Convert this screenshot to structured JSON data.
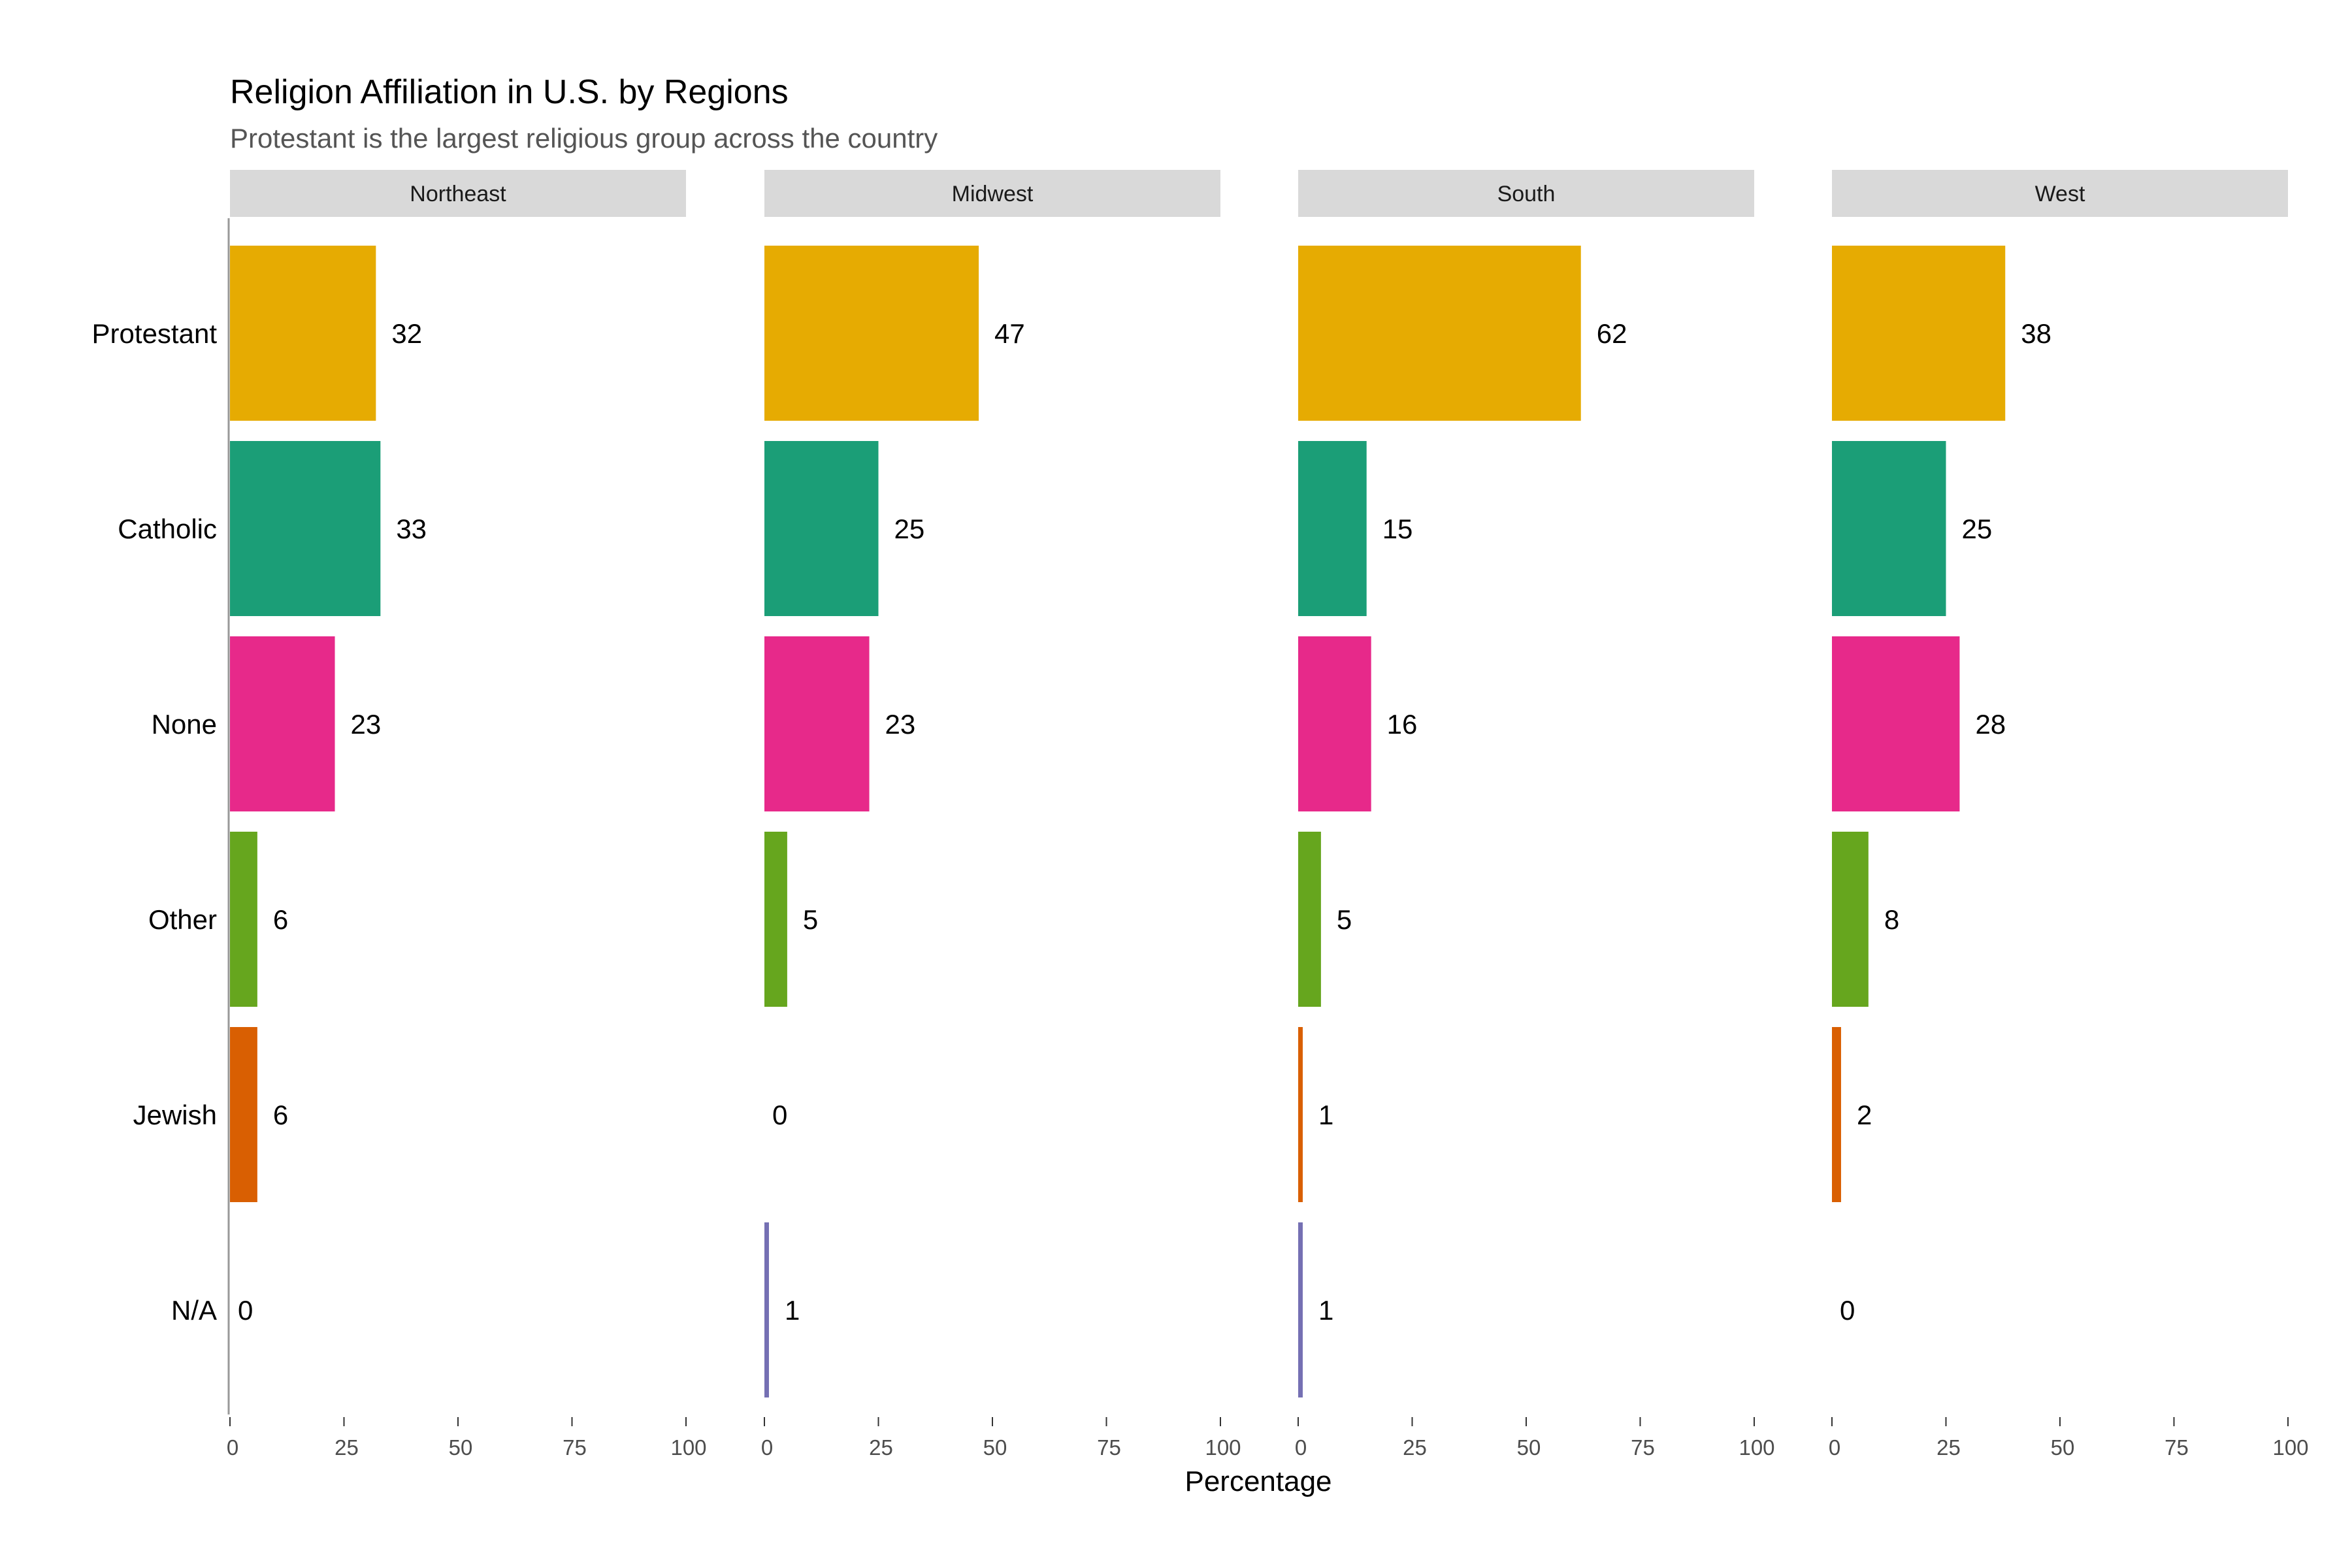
{
  "chart_data": {
    "type": "bar",
    "orientation": "horizontal",
    "title": "Religion Affiliation in U.S. by Regions",
    "subtitle": "Protestant is the largest religious group across the country",
    "xlabel": "Percentage",
    "xlim": [
      0,
      100
    ],
    "xticks": [
      0,
      25,
      50,
      75,
      100
    ],
    "categories": [
      "Protestant",
      "Catholic",
      "None",
      "Other",
      "Jewish",
      "N/A"
    ],
    "category_colors": {
      "Protestant": "#E6AB02",
      "Catholic": "#1B9E77",
      "None": "#E7298A",
      "Other": "#66A61E",
      "Jewish": "#D95F02",
      "N/A": "#7570B3"
    },
    "panels": [
      {
        "region": "Northeast",
        "values": [
          32,
          33,
          23,
          6,
          6,
          0
        ]
      },
      {
        "region": "Midwest",
        "values": [
          47,
          25,
          23,
          5,
          0,
          1
        ]
      },
      {
        "region": "South",
        "values": [
          62,
          15,
          16,
          5,
          1,
          1
        ]
      },
      {
        "region": "West",
        "values": [
          38,
          25,
          28,
          8,
          2,
          0
        ]
      }
    ],
    "grid": false,
    "legend": "none"
  }
}
